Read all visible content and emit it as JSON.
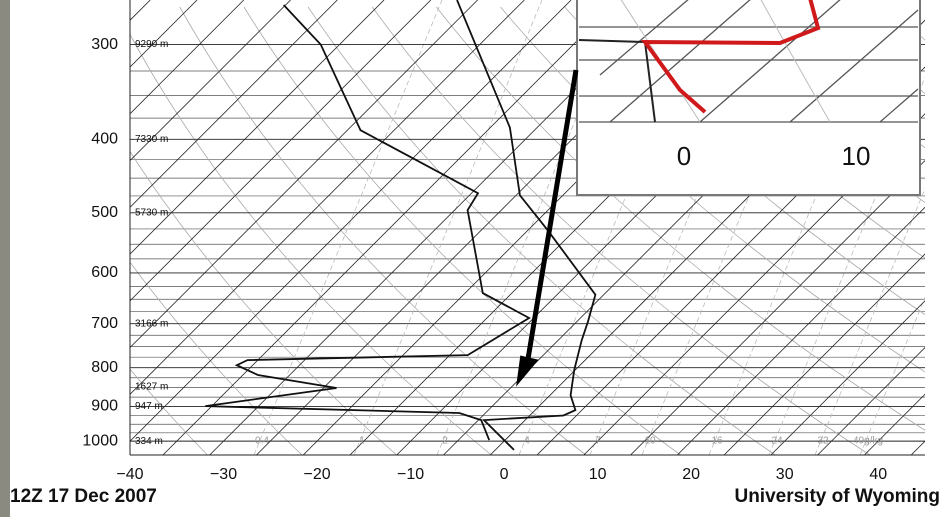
{
  "chart_data": {
    "type": "skewt",
    "xlim": [
      -40,
      45
    ],
    "xticks": [
      {
        "value": -40,
        "label": "−40"
      },
      {
        "value": -30,
        "label": "−30"
      },
      {
        "value": -20,
        "label": "−20"
      },
      {
        "value": -10,
        "label": "−10"
      },
      0,
      10,
      20,
      30,
      40
    ],
    "ylim": [
      1043,
      262
    ],
    "log_y": true,
    "yticks": [
      300,
      400,
      500,
      600,
      700,
      800,
      900,
      1000
    ],
    "height_labels": [
      "9290 m",
      "7330 m",
      "5730 m",
      null,
      "3166 m",
      null,
      "947 m",
      "334 m"
    ],
    "extra_height_label": "1627 m",
    "mixing_ratio_labels": [
      "0.4",
      "1",
      "2",
      "4",
      "7",
      "10",
      "16",
      "24",
      "32",
      "40g/kg"
    ],
    "series": [
      {
        "color": "#111111",
        "x": [
          -52.2,
          -32.9,
          -24.6,
          -17.9,
          -5.9,
          -3.8,
          -2.5,
          -0.1,
          2.2,
          4.3,
          3.6,
          -4.4,
          2.0
        ],
        "y": [
          262,
          386,
          474,
          527,
          641,
          696,
          736,
          806,
          870,
          910,
          925,
          938,
          1027
        ]
      },
      {
        "color": "#111111",
        "x": [
          -70.2,
          -62.0,
          -48.6,
          -29.3,
          -28.6,
          -18.1,
          -10.5,
          -13.1,
          -36.1,
          -36.7,
          -33.4,
          -23.6,
          -35.7,
          -7.8,
          -4.7,
          -1.7
        ],
        "y": [
          266,
          300,
          389,
          471,
          496,
          638,
          688,
          770,
          782,
          794,
          818,
          851,
          899,
          918,
          938,
          997
        ]
      }
    ],
    "footer_left": "12Z 17 Dec 2007",
    "footer_right": "University of Wyoming",
    "inset_xticks": [
      0,
      10
    ]
  }
}
